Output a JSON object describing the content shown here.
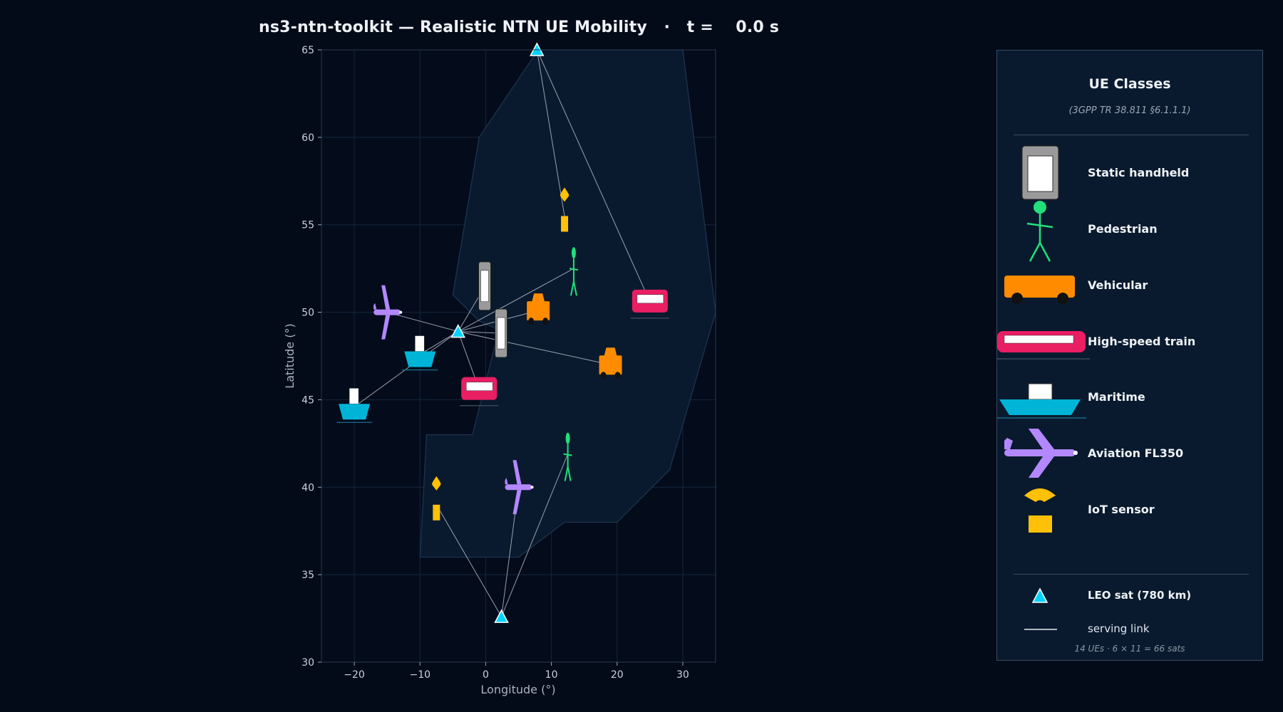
{
  "title": "ns3-ntn-toolkit — Realistic NTN UE Mobility   ·   t =    0.0 s",
  "chart_data": {
    "type": "scatter",
    "xlabel": "Longitude (°)",
    "ylabel": "Latitude (°)",
    "xlim": [
      -25,
      35
    ],
    "ylim": [
      30,
      65
    ],
    "xticks": [
      -20,
      -10,
      0,
      10,
      20,
      30
    ],
    "xtick_labels": [
      "−20",
      "−10",
      "0",
      "10",
      "20",
      "30"
    ],
    "yticks": [
      30,
      35,
      40,
      45,
      50,
      55,
      60,
      65
    ],
    "ytick_labels": [
      "30",
      "35",
      "40",
      "45",
      "50",
      "55",
      "60",
      "65"
    ],
    "grid": true,
    "region_polygon": [
      [
        -5,
        51
      ],
      [
        -1,
        60
      ],
      [
        8,
        65
      ],
      [
        30,
        65
      ],
      [
        35,
        50
      ],
      [
        28,
        41
      ],
      [
        20,
        38
      ],
      [
        12,
        38
      ],
      [
        5,
        36
      ],
      [
        -10,
        36
      ],
      [
        -9,
        43
      ],
      [
        -2,
        43
      ],
      [
        2,
        49
      ],
      [
        -1,
        49.5
      ]
    ],
    "satellites": [
      {
        "lon": -4.2,
        "lat": 48.9
      },
      {
        "lon": 7.8,
        "lat": 65.0
      },
      {
        "lon": 2.4,
        "lat": 32.6
      }
    ],
    "ues": [
      {
        "class": "Static handheld",
        "lon": -0.1,
        "lat": 51.5,
        "serving_sat": 0
      },
      {
        "class": "Static handheld",
        "lon": 2.4,
        "lat": 48.8,
        "serving_sat": 0
      },
      {
        "class": "Pedestrian",
        "lon": 13.4,
        "lat": 52.5,
        "serving_sat": 0
      },
      {
        "class": "Pedestrian",
        "lon": 12.5,
        "lat": 41.9,
        "serving_sat": 2
      },
      {
        "class": "Vehicular",
        "lon": 8.0,
        "lat": 50.1,
        "serving_sat": 0
      },
      {
        "class": "Vehicular",
        "lon": 19.0,
        "lat": 47.0,
        "serving_sat": 0
      },
      {
        "class": "High-speed train",
        "lon": 25.0,
        "lat": 50.6,
        "serving_sat": 1
      },
      {
        "class": "High-speed train",
        "lon": -1.0,
        "lat": 45.6,
        "serving_sat": 0
      },
      {
        "class": "Maritime",
        "lon": -10.0,
        "lat": 47.6,
        "serving_sat": 0
      },
      {
        "class": "Maritime",
        "lon": -20.0,
        "lat": 44.6,
        "serving_sat": 0
      },
      {
        "class": "Aviation FL350",
        "lon": -15.0,
        "lat": 50.0,
        "serving_sat": 0
      },
      {
        "class": "Aviation FL350",
        "lon": 5.0,
        "lat": 40.0,
        "serving_sat": 2
      },
      {
        "class": "IoT sensor",
        "lon": 12.0,
        "lat": 55.5,
        "serving_sat": 1
      },
      {
        "class": "IoT sensor",
        "lon": -7.5,
        "lat": 39.0,
        "serving_sat": 2
      }
    ]
  },
  "legend": {
    "title": "UE Classes",
    "subtitle": "(3GPP TR 38.811 §6.1.1.1)",
    "items": [
      {
        "label": "Static handheld",
        "icon": "handheld-icon",
        "color": "#9a9a9a"
      },
      {
        "label": "Pedestrian",
        "icon": "pedestrian-icon",
        "color": "#22e07a"
      },
      {
        "label": "Vehicular",
        "icon": "car-icon",
        "color": "#ff8c00"
      },
      {
        "label": "High-speed train",
        "icon": "train-icon",
        "color": "#e91e63"
      },
      {
        "label": "Maritime",
        "icon": "ship-icon",
        "color": "#00b4d8"
      },
      {
        "label": "Aviation FL350",
        "icon": "airplane-icon",
        "color": "#b388ff"
      },
      {
        "label": "IoT sensor",
        "icon": "iot-sensor-icon",
        "color": "#ffc107"
      }
    ],
    "sat_label": "LEO sat (780 km)",
    "link_label": "serving link",
    "footer": "14 UEs · 6 × 11 = 66 sats"
  },
  "colors": {
    "background": "#030a18",
    "axes_bg": "#040c1c",
    "region_fill": "#0a1a2e",
    "region_edge": "#1e3550",
    "satellite": "#00d4ff",
    "link": "#c8d0da",
    "grid": "#15243a"
  }
}
